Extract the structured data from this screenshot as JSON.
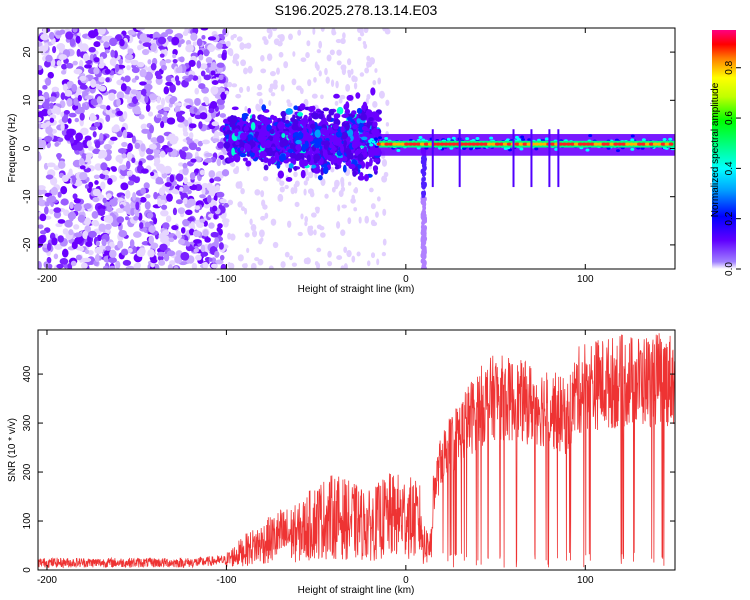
{
  "chart_data": [
    {
      "type": "heatmap",
      "title": "S196.2025.278.13.14.E03",
      "xlabel": "Height of straight line (km)",
      "ylabel": "Frequency (Hz)",
      "xlim": [
        -205,
        150
      ],
      "ylim": [
        -25,
        25
      ],
      "xticks": [
        -200,
        -100,
        0,
        100
      ],
      "yticks": [
        -20,
        -10,
        0,
        10,
        20
      ],
      "colorbar": {
        "label": "Normalized spectral amplitude",
        "range": [
          0.0,
          0.95
        ],
        "ticks": [
          "0.0",
          "0.2",
          "0.4",
          "0.6",
          "0.8"
        ],
        "colormap": [
          "#ffffff",
          "#e8d8ff",
          "#7a00ff",
          "#0000ff",
          "#00ffff",
          "#00ff00",
          "#ffff00",
          "#ff8000",
          "#ff0000",
          "#ff0080"
        ]
      },
      "regions": [
        {
          "x": [
            -205,
            -100
          ],
          "description": "scattered purple noise across all frequencies",
          "amplitude": 0.03
        },
        {
          "x": [
            -100,
            -20
          ],
          "description": "broadband emission centered near 0-5 Hz",
          "amplitude": 0.15
        },
        {
          "x": [
            -20,
            150
          ],
          "description": "narrow band at about 1 Hz",
          "amplitude": 0.85
        },
        {
          "x": [
            9,
            11
          ],
          "description": "vertical stripe down to -25 Hz",
          "amplitude": 0.1
        }
      ]
    },
    {
      "type": "line",
      "xlabel": "Height of straight line (km)",
      "ylabel": "SNR (10 * v/v)",
      "xlim": [
        -205,
        150
      ],
      "ylim": [
        0,
        490
      ],
      "xticks": [
        -200,
        -100,
        0,
        100
      ],
      "yticks": [
        0,
        100,
        200,
        300,
        400
      ],
      "line_color": "#ee3333",
      "series": [
        {
          "name": "SNR",
          "x": [
            -205,
            -180,
            -150,
            -120,
            -100,
            -90,
            -80,
            -70,
            -60,
            -50,
            -40,
            -30,
            -20,
            -10,
            0,
            10,
            15,
            20,
            30,
            40,
            50,
            60,
            70,
            80,
            85,
            90,
            95,
            100,
            110,
            120,
            130,
            140,
            150
          ],
          "values": [
            15,
            15,
            15,
            15,
            20,
            40,
            55,
            70,
            75,
            100,
            110,
            100,
            90,
            110,
            110,
            95,
            150,
            230,
            280,
            330,
            355,
            345,
            340,
            330,
            320,
            310,
            360,
            380,
            380,
            385,
            385,
            390,
            390
          ]
        }
      ]
    }
  ]
}
